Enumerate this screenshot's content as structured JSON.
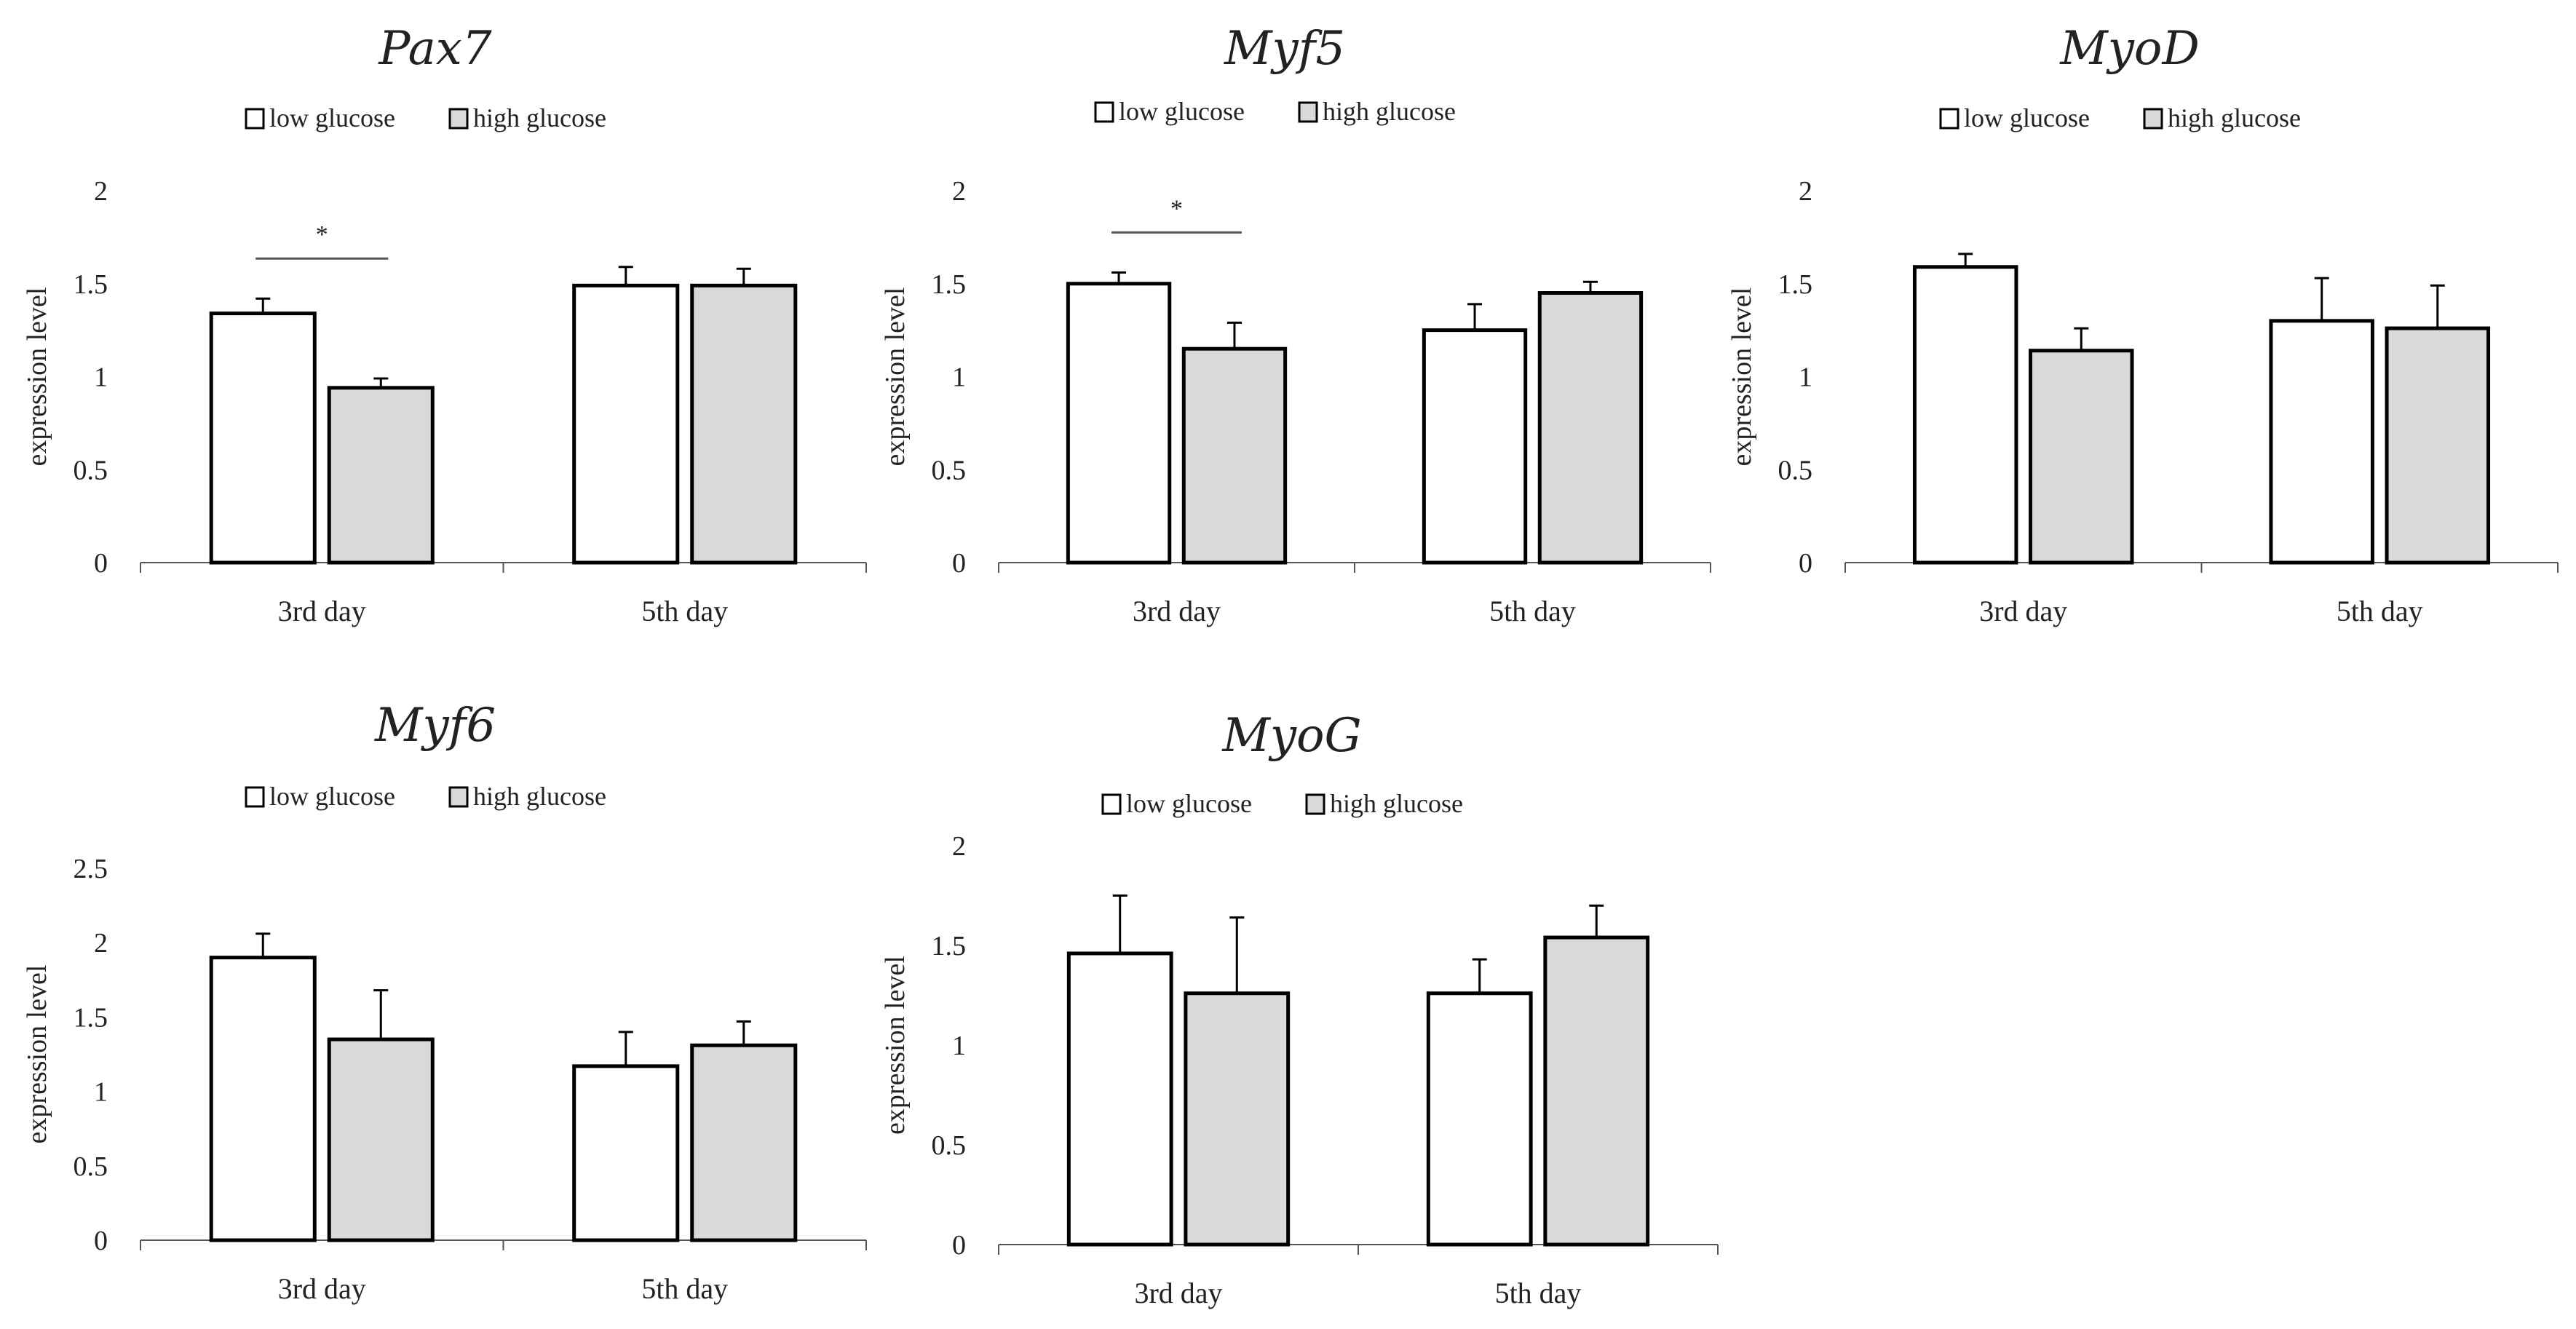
{
  "colors": {
    "low": "#ffffff",
    "high": "#d9d9d9",
    "stroke": "#000000",
    "axis": "#555555"
  },
  "chart_data": [
    {
      "type": "bar",
      "title": "Pax7",
      "ylabel": "expression  level",
      "categories": [
        "3rd day",
        "5th day"
      ],
      "ylim": [
        0,
        2
      ],
      "yticks": [
        0,
        0.5,
        1,
        1.5,
        2
      ],
      "ytick_labels": [
        "0",
        "0.5",
        "1",
        "1.5",
        "2"
      ],
      "series": [
        {
          "name": "low glucose",
          "values": [
            1.34,
            1.49
          ],
          "errors": [
            0.08,
            0.1
          ]
        },
        {
          "name": "high glucose",
          "values": [
            0.94,
            1.49
          ],
          "errors": [
            0.05,
            0.09
          ]
        }
      ],
      "annotations": [
        {
          "category": 0,
          "text": "*"
        }
      ]
    },
    {
      "type": "bar",
      "title": "Myf5",
      "ylabel": "expression  level",
      "categories": [
        "3rd day",
        "5th day"
      ],
      "ylim": [
        0,
        2
      ],
      "yticks": [
        0,
        0.5,
        1,
        1.5,
        2
      ],
      "ytick_labels": [
        "0",
        "0.5",
        "1",
        "1.5",
        "2"
      ],
      "series": [
        {
          "name": "low glucose",
          "values": [
            1.5,
            1.25
          ],
          "errors": [
            0.06,
            0.14
          ]
        },
        {
          "name": "high glucose",
          "values": [
            1.15,
            1.45
          ],
          "errors": [
            0.14,
            0.06
          ]
        }
      ],
      "annotations": [
        {
          "category": 0,
          "text": "*"
        }
      ]
    },
    {
      "type": "bar",
      "title": "MyoD",
      "ylabel": "expression  level",
      "categories": [
        "3rd day",
        "5th day"
      ],
      "ylim": [
        0,
        2
      ],
      "yticks": [
        0,
        0.5,
        1,
        1.5,
        2
      ],
      "ytick_labels": [
        "0",
        "0.5",
        "1",
        "1.5",
        "2"
      ],
      "series": [
        {
          "name": "low glucose",
          "values": [
            1.59,
            1.3
          ],
          "errors": [
            0.07,
            0.23
          ]
        },
        {
          "name": "high glucose",
          "values": [
            1.14,
            1.26
          ],
          "errors": [
            0.12,
            0.23
          ]
        }
      ],
      "annotations": []
    },
    {
      "type": "bar",
      "title": "Myf6",
      "ylabel": "expression  level",
      "categories": [
        "3rd day",
        "5th day"
      ],
      "ylim": [
        0,
        2.5
      ],
      "yticks": [
        0,
        0.5,
        1,
        1.5,
        2,
        2.5
      ],
      "ytick_labels": [
        "0",
        "0.5",
        "1",
        "1.5",
        "2",
        "2.5"
      ],
      "series": [
        {
          "name": "low glucose",
          "values": [
            1.9,
            1.17
          ],
          "errors": [
            0.16,
            0.23
          ]
        },
        {
          "name": "high glucose",
          "values": [
            1.35,
            1.31
          ],
          "errors": [
            0.33,
            0.16
          ]
        }
      ],
      "annotations": []
    },
    {
      "type": "bar",
      "title": "MyoG",
      "ylabel": "expression  level",
      "categories": [
        "3rd day",
        "5th day"
      ],
      "ylim": [
        0,
        2
      ],
      "yticks": [
        0,
        0.5,
        1,
        1.5,
        2
      ],
      "ytick_labels": [
        "0",
        "0.5",
        "1",
        "1.5",
        "2"
      ],
      "series": [
        {
          "name": "low glucose",
          "values": [
            1.46,
            1.26
          ],
          "errors": [
            0.29,
            0.17
          ]
        },
        {
          "name": "high glucose",
          "values": [
            1.26,
            1.54
          ],
          "errors": [
            0.38,
            0.16
          ]
        }
      ],
      "annotations": []
    }
  ]
}
